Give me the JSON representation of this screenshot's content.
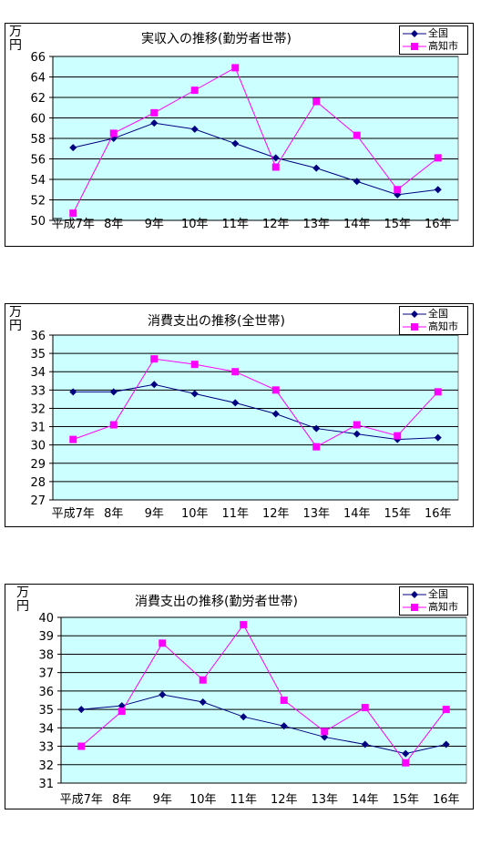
{
  "legend": {
    "series_a": "全国",
    "series_b": "高知市"
  },
  "colors": {
    "plot_bg": "#ccffff",
    "series_a": "#000080",
    "series_b": "#ff00ff",
    "grid": "#000000"
  },
  "chart_data": [
    {
      "type": "line",
      "title": "実収入の推移(勤労者世帯)",
      "unit_label": [
        "万",
        "円"
      ],
      "categories": [
        "平成7年",
        "8年",
        "9年",
        "10年",
        "11年",
        "12年",
        "13年",
        "14年",
        "15年",
        "16年"
      ],
      "ylim": [
        50,
        66
      ],
      "yticks": [
        50,
        52,
        54,
        56,
        58,
        60,
        62,
        64,
        66
      ],
      "grid": true,
      "legend_position": "top-right",
      "series": [
        {
          "name": "全国",
          "color": "#000080",
          "marker": "diamond",
          "values": [
            57.1,
            58.0,
            59.5,
            58.9,
            57.5,
            56.1,
            55.1,
            53.8,
            52.5,
            53.0
          ]
        },
        {
          "name": "高知市",
          "color": "#ff00ff",
          "marker": "square",
          "values": [
            50.7,
            58.5,
            60.5,
            62.7,
            64.9,
            55.2,
            61.6,
            58.3,
            53.0,
            56.1
          ]
        }
      ]
    },
    {
      "type": "line",
      "title": "消費支出の推移(全世帯)",
      "unit_label": [
        "万",
        "円"
      ],
      "categories": [
        "平成7年",
        "8年",
        "9年",
        "10年",
        "11年",
        "12年",
        "13年",
        "14年",
        "15年",
        "16年"
      ],
      "ylim": [
        27,
        36
      ],
      "yticks": [
        27,
        28,
        29,
        30,
        31,
        32,
        33,
        34,
        35,
        36
      ],
      "grid": true,
      "legend_position": "top-right",
      "series": [
        {
          "name": "全国",
          "color": "#000080",
          "marker": "diamond",
          "values": [
            32.9,
            32.9,
            33.3,
            32.8,
            32.3,
            31.7,
            30.9,
            30.6,
            30.3,
            30.4
          ]
        },
        {
          "name": "高知市",
          "color": "#ff00ff",
          "marker": "square",
          "values": [
            30.3,
            31.1,
            34.7,
            34.4,
            34.0,
            33.0,
            29.9,
            31.1,
            30.5,
            32.9
          ]
        }
      ]
    },
    {
      "type": "line",
      "title": "消費支出の推移(勤労者世帯)",
      "unit_label": [
        "万",
        "円"
      ],
      "categories": [
        "平成7年",
        "8年",
        "9年",
        "10年",
        "11年",
        "12年",
        "13年",
        "14年",
        "15年",
        "16年"
      ],
      "ylim": [
        31,
        40
      ],
      "yticks": [
        31,
        32,
        33,
        34,
        35,
        36,
        37,
        38,
        39,
        40
      ],
      "grid": true,
      "legend_position": "top-right",
      "series": [
        {
          "name": "全国",
          "color": "#000080",
          "marker": "diamond",
          "values": [
            35.0,
            35.2,
            35.8,
            35.4,
            34.6,
            34.1,
            33.5,
            33.1,
            32.6,
            33.1
          ]
        },
        {
          "name": "高知市",
          "color": "#ff00ff",
          "marker": "square",
          "values": [
            33.0,
            34.9,
            38.6,
            36.6,
            39.6,
            35.5,
            33.8,
            35.1,
            32.1,
            35.0
          ]
        }
      ]
    }
  ]
}
